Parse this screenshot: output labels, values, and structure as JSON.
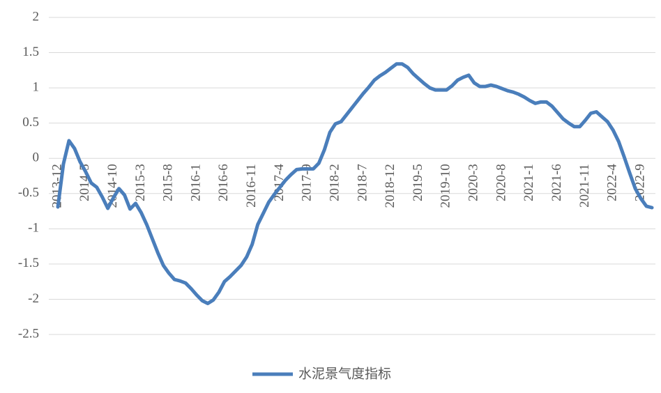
{
  "chart_data": {
    "type": "line",
    "categories": [
      "2013-12",
      null,
      null,
      null,
      null,
      "2014-5",
      null,
      null,
      null,
      null,
      "2014-10",
      null,
      null,
      null,
      null,
      "2015-3",
      null,
      null,
      null,
      null,
      "2015-8",
      null,
      null,
      null,
      null,
      "2016-1",
      null,
      null,
      null,
      null,
      "2016-6",
      null,
      null,
      null,
      null,
      "2016-11",
      null,
      null,
      null,
      null,
      "2017-4",
      null,
      null,
      null,
      null,
      "2017-9",
      null,
      null,
      null,
      null,
      "2018-2",
      null,
      null,
      null,
      null,
      "2018-7",
      null,
      null,
      null,
      null,
      "2018-12",
      null,
      null,
      null,
      null,
      "2019-5",
      null,
      null,
      null,
      null,
      "2019-10",
      null,
      null,
      null,
      null,
      "2020-3",
      null,
      null,
      null,
      null,
      "2020-8",
      null,
      null,
      null,
      null,
      "2021-1",
      null,
      null,
      null,
      null,
      "2021-6",
      null,
      null,
      null,
      null,
      "2021-11",
      null,
      null,
      null,
      null,
      "2022-4",
      null,
      null,
      null,
      null,
      "2022-9",
      null,
      null
    ],
    "series": [
      {
        "name": "水泥景气度指标",
        "color": "#4a7ebb",
        "values": [
          -0.69,
          -0.08,
          0.25,
          0.14,
          -0.05,
          -0.19,
          -0.35,
          -0.41,
          -0.55,
          -0.71,
          -0.56,
          -0.43,
          -0.52,
          -0.72,
          -0.64,
          -0.77,
          -0.94,
          -1.14,
          -1.34,
          -1.52,
          -1.63,
          -1.72,
          -1.74,
          -1.77,
          -1.85,
          -1.94,
          -2.02,
          -2.06,
          -2.01,
          -1.9,
          -1.75,
          -1.68,
          -1.6,
          -1.52,
          -1.4,
          -1.22,
          -0.94,
          -0.78,
          -0.62,
          -0.51,
          -0.41,
          -0.31,
          -0.23,
          -0.16,
          -0.15,
          -0.15,
          -0.15,
          -0.07,
          0.12,
          0.37,
          0.49,
          0.52,
          0.62,
          0.72,
          0.82,
          0.92,
          1.01,
          1.11,
          1.17,
          1.22,
          1.28,
          1.34,
          1.34,
          1.29,
          1.2,
          1.13,
          1.06,
          1.0,
          0.97,
          0.97,
          0.97,
          1.03,
          1.11,
          1.15,
          1.18,
          1.07,
          1.02,
          1.02,
          1.04,
          1.02,
          0.99,
          0.96,
          0.94,
          0.91,
          0.87,
          0.82,
          0.78,
          0.8,
          0.8,
          0.74,
          0.65,
          0.56,
          0.5,
          0.45,
          0.45,
          0.54,
          0.64,
          0.66,
          0.59,
          0.52,
          0.4,
          0.24,
          0.02,
          -0.21,
          -0.43,
          -0.57,
          -0.68,
          -0.7
        ]
      }
    ],
    "ylim": [
      -2.5,
      2
    ],
    "yticks": [
      2,
      1.5,
      1,
      0.5,
      0,
      -0.5,
      -1,
      -1.5,
      -2,
      -2.5
    ],
    "grid": true,
    "legend": "bottom"
  }
}
